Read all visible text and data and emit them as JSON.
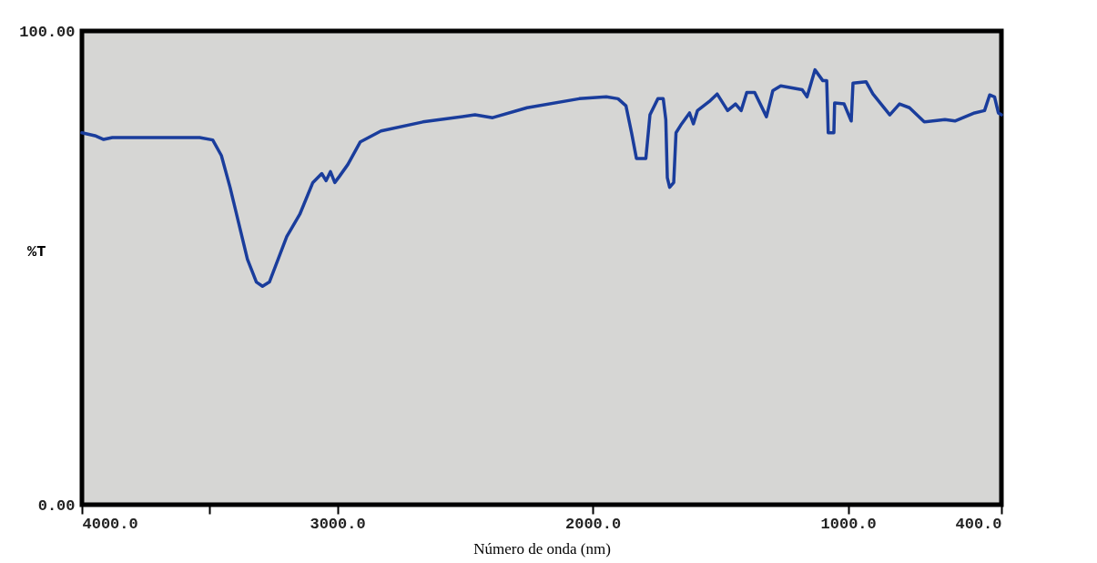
{
  "chart_data": {
    "type": "line",
    "xlabel": "Número de onda (nm)",
    "ylabel": "%T",
    "x": [
      4000,
      3949,
      3915,
      3881,
      3744,
      3539,
      3488,
      3454,
      3420,
      3386,
      3352,
      3317,
      3293,
      3266,
      3232,
      3198,
      3147,
      3096,
      3061,
      3044,
      3027,
      3010,
      2992,
      2959,
      2910,
      2829,
      2665,
      2461,
      2392,
      2257,
      2053,
      1947,
      1901,
      1870,
      1848,
      1829,
      1792,
      1776,
      1745,
      1724,
      1714,
      1708,
      1699,
      1683,
      1674,
      1652,
      1621,
      1606,
      1590,
      1544,
      1513,
      1472,
      1441,
      1419,
      1397,
      1366,
      1320,
      1295,
      1264,
      1180,
      1161,
      1130,
      1099,
      1084,
      1078,
      1056,
      1053,
      1016,
      988,
      981,
      930,
      903,
      837,
      799,
      760,
      702,
      621,
      582,
      505,
      466,
      446,
      427,
      412,
      400
    ],
    "series": [
      {
        "color": "#1a3d9c",
        "values": [
          78.5,
          77.9,
          77.1,
          77.5,
          77.5,
          77.5,
          77.0,
          73.7,
          67.0,
          59.4,
          51.8,
          47.0,
          46.1,
          47.0,
          51.8,
          56.6,
          61.3,
          68.0,
          69.9,
          68.4,
          70.3,
          68.0,
          69.3,
          71.8,
          76.6,
          78.9,
          80.8,
          82.3,
          81.7,
          83.8,
          85.7,
          86.1,
          85.7,
          84.2,
          78.5,
          73.1,
          73.1,
          82.3,
          85.7,
          85.7,
          81.3,
          69.0,
          67.0,
          68.0,
          78.5,
          80.4,
          82.7,
          80.4,
          83.2,
          85.1,
          86.7,
          83.2,
          84.6,
          83.2,
          87.0,
          87.0,
          81.9,
          87.4,
          88.4,
          87.6,
          86.1,
          91.8,
          89.5,
          89.5,
          78.5,
          78.5,
          84.8,
          84.6,
          81.0,
          89.0,
          89.3,
          86.7,
          82.3,
          84.6,
          83.8,
          80.8,
          81.3,
          81.0,
          82.7,
          83.2,
          86.5,
          86.1,
          82.7,
          82.3
        ]
      }
    ],
    "xlim": [
      4000,
      400
    ],
    "xticks": [
      {
        "value": 4000,
        "label": "4000.0"
      },
      {
        "value": 3500,
        "label": null
      },
      {
        "value": 3000,
        "label": "3000.0"
      },
      {
        "value": 2000,
        "label": "2000.0"
      },
      {
        "value": 1000,
        "label": "1000.0"
      },
      {
        "value": 400,
        "label": "400.0"
      }
    ],
    "ylim": [
      0,
      100
    ],
    "yticks": [
      {
        "value": 0,
        "label": "0.00"
      },
      {
        "value": 100,
        "label": "100.00"
      }
    ],
    "grid": false,
    "line_style": "solid",
    "marker": "none"
  }
}
